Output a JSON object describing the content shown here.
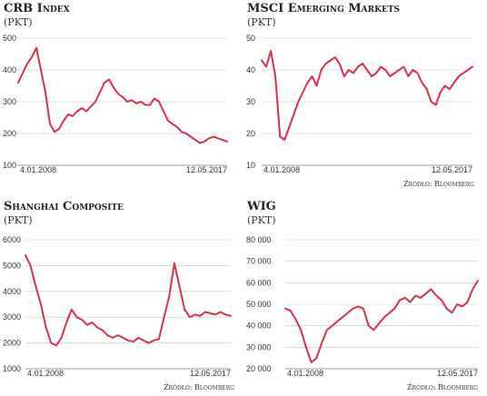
{
  "source_label": "Źródło: Bloomberg",
  "chart_data": [
    {
      "type": "line",
      "title": "CRB Index",
      "unit": "(PKT)",
      "y_ticks": [
        "500",
        "400",
        "300",
        "200",
        "100"
      ],
      "ylim": [
        100,
        500
      ],
      "x_labels": [
        "4.01.2008",
        "12.05.2017"
      ],
      "color": "#d9304e",
      "series": [
        {
          "values": [
            360,
            390,
            420,
            440,
            470,
            400,
            330,
            230,
            205,
            215,
            240,
            260,
            255,
            270,
            280,
            270,
            285,
            300,
            330,
            360,
            370,
            345,
            325,
            315,
            300,
            305,
            295,
            300,
            290,
            290,
            310,
            300,
            270,
            240,
            230,
            220,
            205,
            200,
            190,
            180,
            170,
            175,
            185,
            190,
            185,
            180,
            175
          ]
        }
      ]
    },
    {
      "type": "line",
      "title": "MSCI Emerging Markets",
      "unit": "(PKT)",
      "y_ticks": [
        "50",
        "40",
        "30",
        "20",
        "10"
      ],
      "ylim": [
        10,
        50
      ],
      "x_labels": [
        "4.01.2008",
        "12.05.2017"
      ],
      "color": "#d9304e",
      "series": [
        {
          "values": [
            43,
            41,
            46,
            38,
            19,
            18,
            22,
            26,
            30,
            33,
            36,
            38,
            35,
            40,
            42,
            43,
            44,
            42,
            38,
            40,
            39,
            41,
            42,
            40,
            38,
            39,
            41,
            40,
            38,
            39,
            40,
            41,
            38,
            40,
            39,
            36,
            34,
            30,
            29,
            33,
            35,
            34,
            36,
            38,
            39,
            40,
            41
          ]
        }
      ]
    },
    {
      "type": "line",
      "title": "Shanghai Composite",
      "unit": "(PKT)",
      "y_ticks": [
        "6000",
        "5000",
        "4000",
        "3000",
        "2000",
        "1000"
      ],
      "ylim": [
        1000,
        6000
      ],
      "x_labels": [
        "4.01.2008",
        "12.05.2017"
      ],
      "color": "#d9304e",
      "series": [
        {
          "values": [
            5400,
            5000,
            4200,
            3500,
            2600,
            2000,
            1900,
            2200,
            2800,
            3300,
            3000,
            2900,
            2700,
            2800,
            2600,
            2500,
            2300,
            2200,
            2300,
            2200,
            2100,
            2050,
            2200,
            2100,
            2000,
            2100,
            2150,
            3000,
            3800,
            5100,
            4200,
            3300,
            3000,
            3100,
            3050,
            3200,
            3150,
            3100,
            3200,
            3100,
            3050
          ]
        }
      ]
    },
    {
      "type": "line",
      "title": "WIG",
      "unit": "(PKT)",
      "y_ticks": [
        "80 000",
        "70 000",
        "60 000",
        "50 000",
        "40 000",
        "30 000",
        "20 000"
      ],
      "ylim": [
        20000,
        80000
      ],
      "x_labels": [
        "4.01.2008",
        "12.05.2017"
      ],
      "color": "#d9304e",
      "series": [
        {
          "values": [
            48000,
            47000,
            43000,
            38000,
            30000,
            23000,
            25000,
            32000,
            38000,
            40000,
            42000,
            44000,
            46000,
            48000,
            49000,
            48000,
            40000,
            38000,
            41000,
            44000,
            46000,
            48000,
            52000,
            53000,
            51000,
            54000,
            53000,
            55000,
            57000,
            54000,
            52000,
            48000,
            46000,
            50000,
            49000,
            51000,
            57000,
            61000
          ]
        }
      ]
    }
  ]
}
